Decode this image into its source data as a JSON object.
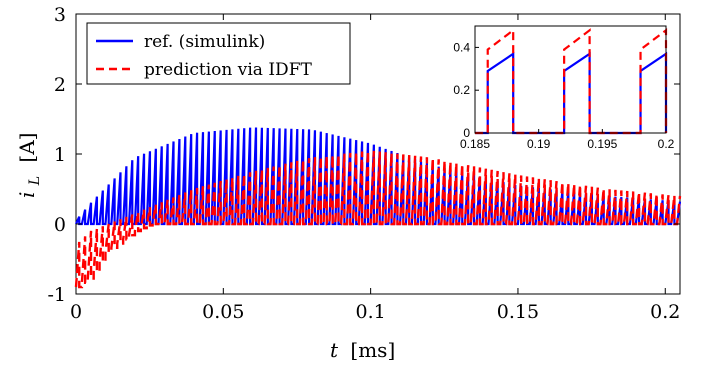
{
  "chart_data": [
    {
      "type": "line",
      "title": "",
      "xlabel_var": "t",
      "xlabel_unit": "[ms]",
      "ylabel_var": "i",
      "ylabel_sub": "L",
      "ylabel_unit": "[A]",
      "xlim": [
        0,
        0.205
      ],
      "ylim": [
        -1,
        3
      ],
      "x_ticks": [
        0,
        0.05,
        0.1,
        0.15,
        0.2
      ],
      "x_tick_labels": [
        "0",
        "0.05",
        "0.1",
        "0.15",
        "0.2"
      ],
      "y_ticks": [
        -1,
        0,
        1,
        2,
        3
      ],
      "y_tick_labels": [
        "-1",
        "0",
        "1",
        "2",
        "3"
      ],
      "grid": false,
      "legend_position": "top-left",
      "series": [
        {
          "name": "ref. (simulink)",
          "color": "#0000ff",
          "style": "solid",
          "period_ms": 0.002,
          "duty": 0.55,
          "peak_envelope": {
            "x": [
              0,
              0.005,
              0.02,
              0.04,
              0.06,
              0.08,
              0.1,
              0.12,
              0.15,
              0.18,
              0.205
            ],
            "y": [
              0.05,
              0.3,
              0.95,
              1.3,
              1.38,
              1.35,
              1.15,
              0.85,
              0.55,
              0.4,
              0.32
            ]
          }
        },
        {
          "name": "prediction via IDFT",
          "color": "#ff0000",
          "style": "dashed",
          "period_ms": 0.002,
          "duty": 0.55,
          "peak_envelope": {
            "x": [
              0,
              0.005,
              0.02,
              0.04,
              0.06,
              0.08,
              0.1,
              0.12,
              0.15,
              0.18,
              0.205
            ],
            "y": [
              -0.3,
              -0.1,
              0.15,
              0.5,
              0.75,
              0.95,
              1.05,
              0.95,
              0.7,
              0.5,
              0.4
            ]
          },
          "trough_envelope": {
            "x": [
              0,
              0.005,
              0.01,
              0.02,
              0.025,
              0.205
            ],
            "y": [
              -0.9,
              -0.75,
              -0.4,
              -0.1,
              0,
              0
            ]
          }
        }
      ]
    },
    {
      "type": "line",
      "title": "",
      "xlim": [
        0.185,
        0.2
      ],
      "ylim": [
        0,
        0.5
      ],
      "x_ticks": [
        0.185,
        0.19,
        0.195,
        0.2
      ],
      "x_tick_labels": [
        "0.185",
        "0.19",
        "0.195",
        "0.2"
      ],
      "y_ticks": [
        0,
        0.2,
        0.4
      ],
      "y_tick_labels": [
        "0",
        "0.2",
        "0.4"
      ],
      "on_intervals": [
        [
          0.186,
          0.188
        ],
        [
          0.192,
          0.194
        ],
        [
          0.198,
          0.2
        ]
      ],
      "partial_intervals": [
        [
          0.198,
          0.2
        ]
      ],
      "series": [
        {
          "name": "ref. (simulink)",
          "color": "#0000ff",
          "style": "solid",
          "start": 0.29,
          "end": 0.37
        },
        {
          "name": "prediction via IDFT",
          "color": "#ff0000",
          "style": "dashed",
          "start": 0.39,
          "end": 0.48
        }
      ]
    }
  ]
}
